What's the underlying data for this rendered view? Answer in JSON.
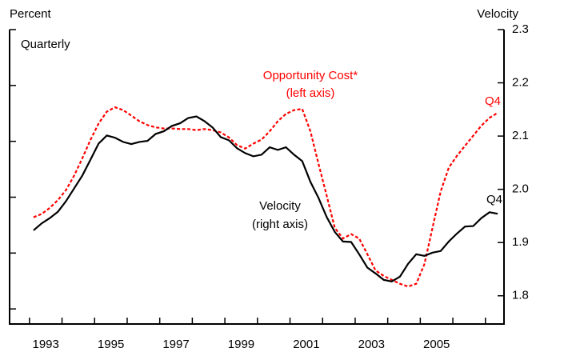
{
  "chart_data": {
    "type": "line",
    "left_axis_title": "Percent",
    "right_axis_title": "Velocity",
    "subtitle": "Quarterly",
    "annotations": [
      {
        "text": "Opportunity Cost*",
        "color": "#ff0000"
      },
      {
        "text": "(left axis)",
        "color": "#ff0000"
      },
      {
        "text": "Q4",
        "color": "#ff0000"
      },
      {
        "text": "Velocity",
        "color": "#000000"
      },
      {
        "text": "(right axis)",
        "color": "#000000"
      },
      {
        "text": "Q4",
        "color": "#000000"
      }
    ],
    "x": [
      1993.125,
      1993.375,
      1993.625,
      1993.875,
      1994.125,
      1994.375,
      1994.625,
      1994.875,
      1995.125,
      1995.375,
      1995.625,
      1995.875,
      1996.125,
      1996.375,
      1996.625,
      1996.875,
      1997.125,
      1997.375,
      1997.625,
      1997.875,
      1998.125,
      1998.375,
      1998.625,
      1998.875,
      1999.125,
      1999.375,
      1999.625,
      1999.875,
      2000.125,
      2000.375,
      2000.625,
      2000.875,
      2001.125,
      2001.375,
      2001.625,
      2001.875,
      2002.125,
      2002.375,
      2002.625,
      2002.875,
      2003.125,
      2003.375,
      2003.625,
      2003.875,
      2004.125,
      2004.375,
      2004.625,
      2004.875,
      2005.125,
      2005.375,
      2005.625,
      2005.875,
      2006.125,
      2006.375,
      2006.625,
      2006.875,
      2007.125,
      2007.375
    ],
    "series": [
      {
        "color": "#ff0000",
        "dashed": true,
        "axis": "y",
        "values": [
          2.64,
          2.7,
          2.81,
          2.95,
          3.13,
          3.39,
          3.7,
          4.03,
          4.32,
          4.53,
          4.61,
          4.56,
          4.46,
          4.36,
          4.29,
          4.25,
          4.23,
          4.23,
          4.22,
          4.22,
          4.2,
          4.22,
          4.2,
          4.16,
          4.07,
          3.93,
          3.87,
          3.96,
          4.03,
          4.18,
          4.36,
          4.49,
          4.56,
          4.58,
          4.18,
          3.6,
          3.03,
          2.45,
          2.26,
          2.34,
          2.26,
          1.98,
          1.69,
          1.59,
          1.52,
          1.45,
          1.4,
          1.45,
          1.8,
          2.45,
          3.1,
          3.53,
          3.74,
          3.92,
          4.1,
          4.28,
          4.42,
          4.51
        ]
      },
      {
        "color": "#000000",
        "dashed": false,
        "axis": "y2",
        "values": [
          1.923,
          1.936,
          1.946,
          1.958,
          1.978,
          2.002,
          2.026,
          2.056,
          2.086,
          2.101,
          2.097,
          2.089,
          2.085,
          2.089,
          2.091,
          2.104,
          2.109,
          2.119,
          2.124,
          2.134,
          2.137,
          2.128,
          2.116,
          2.098,
          2.092,
          2.077,
          2.068,
          2.062,
          2.065,
          2.079,
          2.074,
          2.079,
          2.065,
          2.053,
          2.014,
          1.984,
          1.948,
          1.92,
          1.902,
          1.901,
          1.878,
          1.853,
          1.842,
          1.83,
          1.827,
          1.836,
          1.86,
          1.878,
          1.875,
          1.881,
          1.884,
          1.902,
          1.917,
          1.93,
          1.931,
          1.946,
          1.957,
          1.954
        ]
      }
    ],
    "xlim": [
      1992.39,
      2007.57
    ],
    "xticks": [
      1993,
      1994,
      1995,
      1996,
      1997,
      1998,
      1999,
      2000,
      2001,
      2002,
      2003,
      2004,
      2005,
      2006,
      2007
    ],
    "xticklabels": [
      {
        "value": 1993.5,
        "label": "1993"
      },
      {
        "value": 1995.5,
        "label": "1995"
      },
      {
        "value": 1997.5,
        "label": "1997"
      },
      {
        "value": 1999.5,
        "label": "1999"
      },
      {
        "value": 2001.5,
        "label": "2001"
      },
      {
        "value": 2003.5,
        "label": "2003"
      },
      {
        "value": 2005.5,
        "label": "2005"
      }
    ],
    "ylim": [
      0.73,
      6
    ],
    "yticks": [
      1,
      2,
      3,
      4,
      5,
      6
    ],
    "y2lim": [
      1.747,
      2.3
    ],
    "y2ticks": [
      1.8,
      1.9,
      {
        "value": 2,
        "label": "2.0"
      },
      2.1,
      2.2,
      2.3
    ]
  }
}
